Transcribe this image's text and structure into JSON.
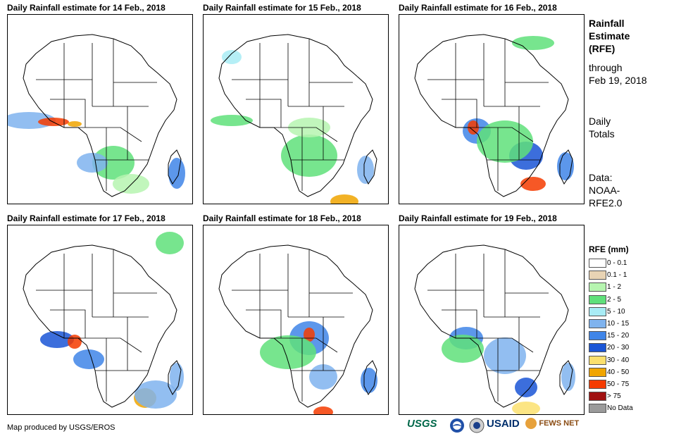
{
  "panels": [
    {
      "title": "Daily Rainfall estimate for 14 Feb., 2018"
    },
    {
      "title": "Daily Rainfall estimate for 15 Feb., 2018"
    },
    {
      "title": "Daily Rainfall estimate for 16 Feb., 2018"
    },
    {
      "title": "Daily Rainfall estimate for 17 Feb., 2018"
    },
    {
      "title": "Daily Rainfall estimate for 18 Feb., 2018"
    },
    {
      "title": "Daily Rainfall estimate for 19 Feb., 2018"
    }
  ],
  "sidebar": {
    "title_line1": "Rainfall",
    "title_line2": "Estimate",
    "title_line3": "(RFE)",
    "through": "through",
    "date": "Feb 19, 2018",
    "totals_line1": "Daily",
    "totals_line2": "Totals",
    "data_line1": "Data:",
    "data_line2": "NOAA-",
    "data_line3": "RFE2.0"
  },
  "legend": {
    "title": "RFE (mm)",
    "items": [
      {
        "label": "0 - 0.1",
        "color": "#ffffff"
      },
      {
        "label": "0.1 - 1",
        "color": "#e8d3b4"
      },
      {
        "label": "1 - 2",
        "color": "#b6f5b0"
      },
      {
        "label": "2 - 5",
        "color": "#5fe07a"
      },
      {
        "label": "5 - 10",
        "color": "#a8ecf5"
      },
      {
        "label": "10 - 15",
        "color": "#7fb3ee"
      },
      {
        "label": "15 - 20",
        "color": "#3f85e8"
      },
      {
        "label": "20 - 30",
        "color": "#1a55d6"
      },
      {
        "label": "30 - 40",
        "color": "#fbe06e"
      },
      {
        "label": "40 - 50",
        "color": "#f0a500"
      },
      {
        "label": "50 - 75",
        "color": "#f53b00"
      },
      {
        "label": "> 75",
        "color": "#a01010"
      },
      {
        "label": "No Data",
        "color": "#9b9b9b"
      }
    ]
  },
  "credit": "Map produced by USGS/EROS",
  "logos": {
    "usgs": "USGS",
    "usaid": "USAID",
    "fewsnet": "FEWS NET"
  }
}
